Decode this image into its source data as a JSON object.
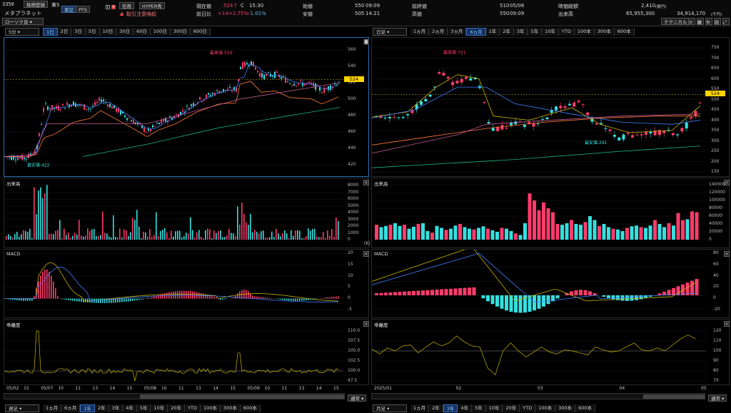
{
  "header": {
    "code": "3350",
    "register_btn": "銘柄登録",
    "exchange": "東S",
    "name": "メタプラネット",
    "mkt_tse": "東証",
    "mkt_pts": "PTS",
    "credit": "信用",
    "hyper": "HYPER秀",
    "flag_L": "L",
    "flag_mark": "大",
    "warning": "取引注意喚起",
    "chart_type": "ローソク足",
    "now_label": "現在値",
    "now_value": "524",
    "now_arrow": "↑",
    "now_c": "C",
    "now_time": "15:30",
    "prev_label": "前日比",
    "prev_value": "+14",
    "prev_pct": "+2.75%",
    "prev_pct2": "-1.01%",
    "open_label": "始値",
    "open_value": "550",
    "open_time": "09:09",
    "high_label": "高値",
    "high_value": "550",
    "high_time": "09:09",
    "low_label": "安値",
    "low_value": "505",
    "low_time": "14:21",
    "prevclose_label": "前終値",
    "prevclose_value": "510",
    "prevclose_date": "05/08",
    "mcap_label": "時価総額",
    "mcap_value": "2,410",
    "mcap_unit": "(億円)",
    "vol_label": "出来高",
    "vol_value": "65,955,300",
    "amt_value": "34,914,170",
    "amt_unit": "(千円)",
    "technical": "テクニカル"
  },
  "left": {
    "interval": "5分",
    "periods": [
      "1日",
      "2日",
      "3日",
      "5日",
      "10日",
      "30日",
      "60日",
      "100日",
      "300日",
      "600日"
    ],
    "active_period": "1日",
    "price_axis": [
      "560",
      "540",
      "520",
      "500",
      "480",
      "460",
      "440",
      "420"
    ],
    "price_tag": "524",
    "high_note": "最高値:550",
    "low_note": "最安値:422",
    "vol_label": "出来高",
    "vol_axis": [
      "8000",
      "7000",
      "6000",
      "5000",
      "4000",
      "3000",
      "2000",
      "1000",
      "0"
    ],
    "vol_unit": "(K)",
    "macd_label": "MACD",
    "macd_axis": [
      "20",
      "15",
      "10",
      "5",
      "0",
      "-5"
    ],
    "rsi_label": "乖離度",
    "rsi_axis": [
      "110.0",
      "107.5",
      "105.0",
      "102.5",
      "100.0",
      "97.5"
    ],
    "x_labels": [
      "05/02",
      "15",
      "05/07",
      "10",
      "11",
      "13",
      "14",
      "15",
      "05/08",
      "10",
      "11",
      "13",
      "14",
      "15",
      "05/09",
      "10",
      "11",
      "13",
      "14",
      "15"
    ],
    "close_icon": "✕"
  },
  "right": {
    "interval": "日足",
    "periods": [
      "1ヵ月",
      "2ヵ月",
      "3ヵ月",
      "6ヵ月",
      "1年",
      "2年",
      "3年",
      "5年",
      "10年",
      "YTD",
      "100本",
      "300本",
      "600本"
    ],
    "active_period": "6ヵ月",
    "price_axis": [
      "750",
      "700",
      "650",
      "600",
      "550",
      "500",
      "450",
      "400",
      "350",
      "300",
      "250",
      "200",
      "150"
    ],
    "price_tag": "524",
    "high_note": "最高値:721",
    "low_note": "最安値:291",
    "vol_label": "出来高",
    "vol_axis": [
      "140000",
      "120000",
      "100000",
      "80000",
      "60000",
      "40000",
      "20000",
      "0"
    ],
    "macd_label": "MACD",
    "macd_axis": [
      "80",
      "60",
      "40",
      "20",
      "0",
      "-20"
    ],
    "rsi_label": "乖離度",
    "rsi_axis": [
      "120",
      "110",
      "100",
      "90",
      "80",
      "70"
    ],
    "x_labels": [
      "2025/01",
      "02",
      "03",
      "04",
      "05"
    ]
  },
  "bottom": {
    "left_interval": "週足",
    "left_periods": [
      "1ヵ月",
      "6ヵ月",
      "1年",
      "2年",
      "3年",
      "4年",
      "5年",
      "10年",
      "20年",
      "YTD",
      "100本",
      "300本",
      "600本"
    ],
    "left_active": "1年",
    "right_interval": "月足",
    "right_periods": [
      "1ヵ月",
      "2年",
      "3年",
      "4年",
      "5年",
      "10年",
      "20年",
      "YTD",
      "100本",
      "300本",
      "600本"
    ],
    "right_active": "3年",
    "scroll_mode": "通常"
  }
}
